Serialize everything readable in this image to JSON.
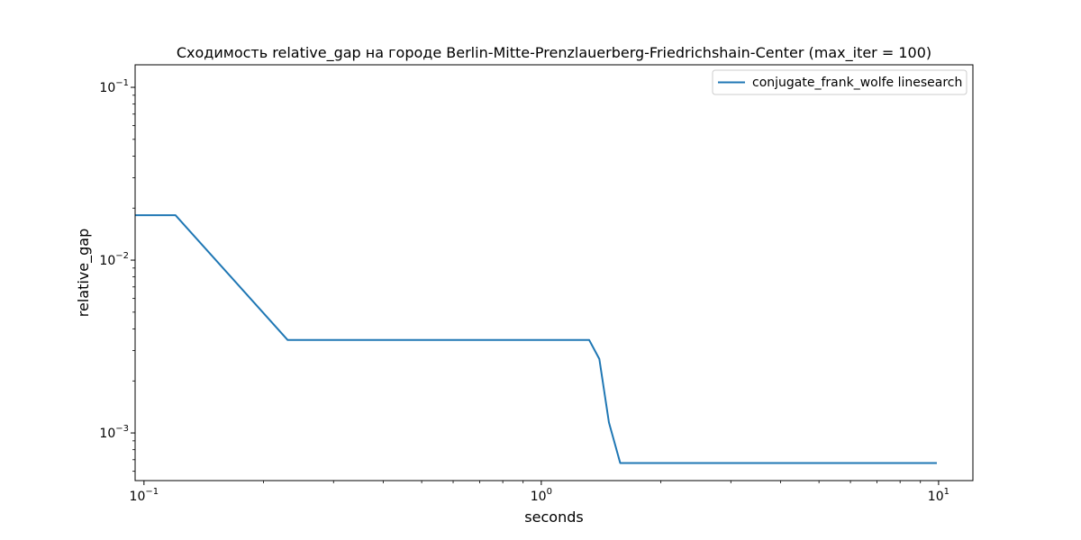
{
  "chart_data": {
    "type": "line",
    "title": "Сходимость relative_gap на городе Berlin-Mitte-Prenzlauerberg-Friedrichshain-Center  (max_iter = 100)",
    "xlabel": "seconds",
    "ylabel": "relative_gap",
    "xscale": "log",
    "yscale": "log",
    "xlim": [
      0.095,
      12.2
    ],
    "ylim": [
      0.00053,
      0.135
    ],
    "x_major_ticks": [
      {
        "value": 0.1,
        "base": "10",
        "exp": "−1"
      },
      {
        "value": 1,
        "base": "10",
        "exp": "0"
      },
      {
        "value": 10,
        "base": "10",
        "exp": "1"
      }
    ],
    "y_major_ticks": [
      {
        "value": 0.1,
        "base": "10",
        "exp": "−1"
      },
      {
        "value": 0.01,
        "base": "10",
        "exp": "−2"
      },
      {
        "value": 0.001,
        "base": "10",
        "exp": "−3"
      }
    ],
    "grid": false,
    "legend_position": "top-right",
    "series": [
      {
        "name": "conjugate_frank_wolfe linesearch",
        "color": "#1f77b4",
        "x": [
          0.095,
          0.12,
          0.23,
          1.32,
          1.4,
          1.48,
          1.58,
          9.9
        ],
        "y": [
          0.0182,
          0.0182,
          0.00345,
          0.00345,
          0.00268,
          0.00115,
          0.00067,
          0.00067
        ]
      }
    ]
  }
}
